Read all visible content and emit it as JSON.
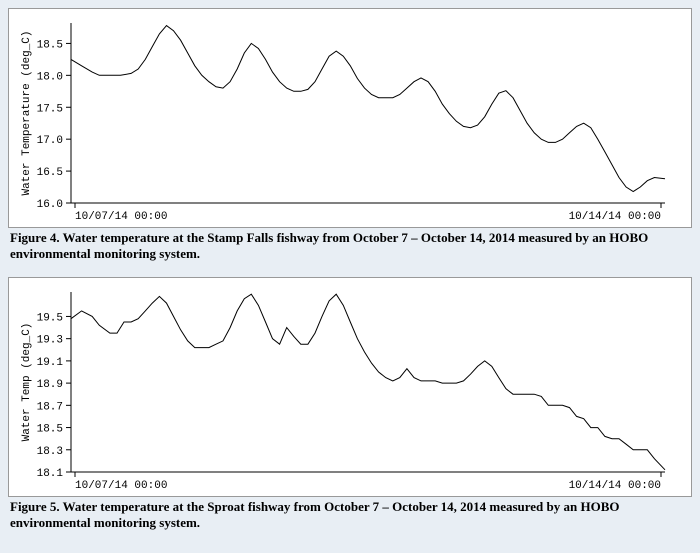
{
  "figure4": {
    "type": "line",
    "caption": "Figure 4. Water temperature at the Stamp Falls fishway from October 7 – October 14, 2014 measured by an HOBO environmental monitoring system.",
    "ylabel": "Water Temperature (deg_C)",
    "ylim": [
      16.0,
      18.82
    ],
    "yticks": [
      16.0,
      16.5,
      17.0,
      17.5,
      18.0,
      18.5
    ],
    "xtick_labels": [
      "10/07/14  00:00",
      "10/14/14  00:00"
    ],
    "xlim": [
      0,
      168
    ],
    "background_color": "#ffffff",
    "line_color": "#000000",
    "axis_color": "#000000",
    "line_width": 1,
    "font_family_axis": "Courier New",
    "axis_fontsize": 11,
    "series": [
      [
        0,
        18.25
      ],
      [
        3,
        18.15
      ],
      [
        6,
        18.05
      ],
      [
        8,
        18.0
      ],
      [
        11,
        18.0
      ],
      [
        14,
        18.0
      ],
      [
        17,
        18.03
      ],
      [
        19,
        18.1
      ],
      [
        21,
        18.25
      ],
      [
        23,
        18.45
      ],
      [
        25,
        18.65
      ],
      [
        27,
        18.78
      ],
      [
        29,
        18.7
      ],
      [
        31,
        18.55
      ],
      [
        33,
        18.35
      ],
      [
        35,
        18.15
      ],
      [
        37,
        18.0
      ],
      [
        39,
        17.9
      ],
      [
        41,
        17.82
      ],
      [
        43,
        17.8
      ],
      [
        45,
        17.9
      ],
      [
        47,
        18.1
      ],
      [
        49,
        18.35
      ],
      [
        51,
        18.5
      ],
      [
        53,
        18.42
      ],
      [
        55,
        18.25
      ],
      [
        57,
        18.05
      ],
      [
        59,
        17.9
      ],
      [
        61,
        17.8
      ],
      [
        63,
        17.75
      ],
      [
        65,
        17.75
      ],
      [
        67,
        17.78
      ],
      [
        69,
        17.9
      ],
      [
        71,
        18.1
      ],
      [
        73,
        18.3
      ],
      [
        75,
        18.38
      ],
      [
        77,
        18.3
      ],
      [
        79,
        18.15
      ],
      [
        81,
        17.95
      ],
      [
        83,
        17.8
      ],
      [
        85,
        17.7
      ],
      [
        87,
        17.65
      ],
      [
        89,
        17.65
      ],
      [
        91,
        17.65
      ],
      [
        93,
        17.7
      ],
      [
        95,
        17.8
      ],
      [
        97,
        17.9
      ],
      [
        99,
        17.96
      ],
      [
        101,
        17.9
      ],
      [
        103,
        17.75
      ],
      [
        105,
        17.55
      ],
      [
        107,
        17.4
      ],
      [
        109,
        17.28
      ],
      [
        111,
        17.2
      ],
      [
        113,
        17.18
      ],
      [
        115,
        17.22
      ],
      [
        117,
        17.35
      ],
      [
        119,
        17.55
      ],
      [
        121,
        17.72
      ],
      [
        123,
        17.76
      ],
      [
        125,
        17.65
      ],
      [
        127,
        17.45
      ],
      [
        129,
        17.25
      ],
      [
        131,
        17.1
      ],
      [
        133,
        17.0
      ],
      [
        135,
        16.95
      ],
      [
        137,
        16.95
      ],
      [
        139,
        17.0
      ],
      [
        141,
        17.1
      ],
      [
        143,
        17.2
      ],
      [
        145,
        17.25
      ],
      [
        147,
        17.18
      ],
      [
        149,
        17.0
      ],
      [
        151,
        16.8
      ],
      [
        153,
        16.6
      ],
      [
        155,
        16.4
      ],
      [
        157,
        16.25
      ],
      [
        159,
        16.18
      ],
      [
        161,
        16.25
      ],
      [
        163,
        16.35
      ],
      [
        165,
        16.4
      ],
      [
        168,
        16.38
      ]
    ]
  },
  "figure5": {
    "type": "line",
    "caption": "Figure 5. Water temperature at the Sproat fishway from October 7 – October 14, 2014 measured by an HOBO environmental monitoring system.",
    "ylabel": "Water Temp (deg_C)",
    "ylim": [
      18.1,
      19.72
    ],
    "yticks": [
      18.1,
      18.3,
      18.5,
      18.7,
      18.9,
      19.1,
      19.3,
      19.5
    ],
    "xtick_labels": [
      "10/07/14  00:00",
      "10/14/14  00:00"
    ],
    "xlim": [
      0,
      168
    ],
    "background_color": "#ffffff",
    "line_color": "#000000",
    "axis_color": "#000000",
    "line_width": 1,
    "font_family_axis": "Courier New",
    "axis_fontsize": 11,
    "series": [
      [
        0,
        19.48
      ],
      [
        3,
        19.55
      ],
      [
        6,
        19.5
      ],
      [
        8,
        19.42
      ],
      [
        11,
        19.35
      ],
      [
        13,
        19.35
      ],
      [
        15,
        19.45
      ],
      [
        17,
        19.45
      ],
      [
        19,
        19.48
      ],
      [
        21,
        19.55
      ],
      [
        23,
        19.62
      ],
      [
        25,
        19.68
      ],
      [
        27,
        19.62
      ],
      [
        29,
        19.5
      ],
      [
        31,
        19.38
      ],
      [
        33,
        19.28
      ],
      [
        35,
        19.22
      ],
      [
        37,
        19.22
      ],
      [
        39,
        19.22
      ],
      [
        41,
        19.25
      ],
      [
        43,
        19.28
      ],
      [
        45,
        19.4
      ],
      [
        47,
        19.55
      ],
      [
        49,
        19.66
      ],
      [
        51,
        19.7
      ],
      [
        53,
        19.6
      ],
      [
        55,
        19.45
      ],
      [
        57,
        19.3
      ],
      [
        59,
        19.25
      ],
      [
        61,
        19.4
      ],
      [
        63,
        19.32
      ],
      [
        65,
        19.25
      ],
      [
        67,
        19.25
      ],
      [
        69,
        19.35
      ],
      [
        71,
        19.5
      ],
      [
        73,
        19.64
      ],
      [
        75,
        19.7
      ],
      [
        77,
        19.6
      ],
      [
        79,
        19.45
      ],
      [
        81,
        19.3
      ],
      [
        83,
        19.18
      ],
      [
        85,
        19.08
      ],
      [
        87,
        19.0
      ],
      [
        89,
        18.95
      ],
      [
        91,
        18.92
      ],
      [
        93,
        18.95
      ],
      [
        95,
        19.03
      ],
      [
        97,
        18.95
      ],
      [
        99,
        18.92
      ],
      [
        101,
        18.92
      ],
      [
        103,
        18.92
      ],
      [
        105,
        18.9
      ],
      [
        107,
        18.9
      ],
      [
        109,
        18.9
      ],
      [
        111,
        18.92
      ],
      [
        113,
        18.98
      ],
      [
        115,
        19.05
      ],
      [
        117,
        19.1
      ],
      [
        119,
        19.05
      ],
      [
        121,
        18.95
      ],
      [
        123,
        18.85
      ],
      [
        125,
        18.8
      ],
      [
        127,
        18.8
      ],
      [
        129,
        18.8
      ],
      [
        131,
        18.8
      ],
      [
        133,
        18.78
      ],
      [
        135,
        18.7
      ],
      [
        137,
        18.7
      ],
      [
        139,
        18.7
      ],
      [
        141,
        18.68
      ],
      [
        143,
        18.6
      ],
      [
        145,
        18.58
      ],
      [
        147,
        18.5
      ],
      [
        149,
        18.5
      ],
      [
        151,
        18.42
      ],
      [
        153,
        18.4
      ],
      [
        155,
        18.4
      ],
      [
        157,
        18.35
      ],
      [
        159,
        18.3
      ],
      [
        161,
        18.3
      ],
      [
        163,
        18.3
      ],
      [
        165,
        18.22
      ],
      [
        168,
        18.12
      ]
    ]
  }
}
